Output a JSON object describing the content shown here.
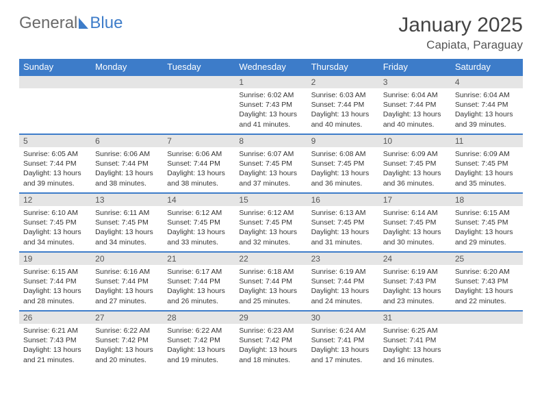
{
  "logo": {
    "general": "General",
    "blue": "Blue"
  },
  "title": "January 2025",
  "location": "Capiata, Paraguay",
  "colors": {
    "header_bg": "#3d7cc9",
    "header_text": "#ffffff",
    "daybar_bg": "#e5e5e5",
    "daybar_border": "#3d7cc9",
    "text": "#333333",
    "background": "#ffffff"
  },
  "weekdays": [
    "Sunday",
    "Monday",
    "Tuesday",
    "Wednesday",
    "Thursday",
    "Friday",
    "Saturday"
  ],
  "weeks": [
    [
      {
        "day": "",
        "sunrise": "",
        "sunset": "",
        "daylight1": "",
        "daylight2": ""
      },
      {
        "day": "",
        "sunrise": "",
        "sunset": "",
        "daylight1": "",
        "daylight2": ""
      },
      {
        "day": "",
        "sunrise": "",
        "sunset": "",
        "daylight1": "",
        "daylight2": ""
      },
      {
        "day": "1",
        "sunrise": "Sunrise: 6:02 AM",
        "sunset": "Sunset: 7:43 PM",
        "daylight1": "Daylight: 13 hours",
        "daylight2": "and 41 minutes."
      },
      {
        "day": "2",
        "sunrise": "Sunrise: 6:03 AM",
        "sunset": "Sunset: 7:44 PM",
        "daylight1": "Daylight: 13 hours",
        "daylight2": "and 40 minutes."
      },
      {
        "day": "3",
        "sunrise": "Sunrise: 6:04 AM",
        "sunset": "Sunset: 7:44 PM",
        "daylight1": "Daylight: 13 hours",
        "daylight2": "and 40 minutes."
      },
      {
        "day": "4",
        "sunrise": "Sunrise: 6:04 AM",
        "sunset": "Sunset: 7:44 PM",
        "daylight1": "Daylight: 13 hours",
        "daylight2": "and 39 minutes."
      }
    ],
    [
      {
        "day": "5",
        "sunrise": "Sunrise: 6:05 AM",
        "sunset": "Sunset: 7:44 PM",
        "daylight1": "Daylight: 13 hours",
        "daylight2": "and 39 minutes."
      },
      {
        "day": "6",
        "sunrise": "Sunrise: 6:06 AM",
        "sunset": "Sunset: 7:44 PM",
        "daylight1": "Daylight: 13 hours",
        "daylight2": "and 38 minutes."
      },
      {
        "day": "7",
        "sunrise": "Sunrise: 6:06 AM",
        "sunset": "Sunset: 7:44 PM",
        "daylight1": "Daylight: 13 hours",
        "daylight2": "and 38 minutes."
      },
      {
        "day": "8",
        "sunrise": "Sunrise: 6:07 AM",
        "sunset": "Sunset: 7:45 PM",
        "daylight1": "Daylight: 13 hours",
        "daylight2": "and 37 minutes."
      },
      {
        "day": "9",
        "sunrise": "Sunrise: 6:08 AM",
        "sunset": "Sunset: 7:45 PM",
        "daylight1": "Daylight: 13 hours",
        "daylight2": "and 36 minutes."
      },
      {
        "day": "10",
        "sunrise": "Sunrise: 6:09 AM",
        "sunset": "Sunset: 7:45 PM",
        "daylight1": "Daylight: 13 hours",
        "daylight2": "and 36 minutes."
      },
      {
        "day": "11",
        "sunrise": "Sunrise: 6:09 AM",
        "sunset": "Sunset: 7:45 PM",
        "daylight1": "Daylight: 13 hours",
        "daylight2": "and 35 minutes."
      }
    ],
    [
      {
        "day": "12",
        "sunrise": "Sunrise: 6:10 AM",
        "sunset": "Sunset: 7:45 PM",
        "daylight1": "Daylight: 13 hours",
        "daylight2": "and 34 minutes."
      },
      {
        "day": "13",
        "sunrise": "Sunrise: 6:11 AM",
        "sunset": "Sunset: 7:45 PM",
        "daylight1": "Daylight: 13 hours",
        "daylight2": "and 34 minutes."
      },
      {
        "day": "14",
        "sunrise": "Sunrise: 6:12 AM",
        "sunset": "Sunset: 7:45 PM",
        "daylight1": "Daylight: 13 hours",
        "daylight2": "and 33 minutes."
      },
      {
        "day": "15",
        "sunrise": "Sunrise: 6:12 AM",
        "sunset": "Sunset: 7:45 PM",
        "daylight1": "Daylight: 13 hours",
        "daylight2": "and 32 minutes."
      },
      {
        "day": "16",
        "sunrise": "Sunrise: 6:13 AM",
        "sunset": "Sunset: 7:45 PM",
        "daylight1": "Daylight: 13 hours",
        "daylight2": "and 31 minutes."
      },
      {
        "day": "17",
        "sunrise": "Sunrise: 6:14 AM",
        "sunset": "Sunset: 7:45 PM",
        "daylight1": "Daylight: 13 hours",
        "daylight2": "and 30 minutes."
      },
      {
        "day": "18",
        "sunrise": "Sunrise: 6:15 AM",
        "sunset": "Sunset: 7:45 PM",
        "daylight1": "Daylight: 13 hours",
        "daylight2": "and 29 minutes."
      }
    ],
    [
      {
        "day": "19",
        "sunrise": "Sunrise: 6:15 AM",
        "sunset": "Sunset: 7:44 PM",
        "daylight1": "Daylight: 13 hours",
        "daylight2": "and 28 minutes."
      },
      {
        "day": "20",
        "sunrise": "Sunrise: 6:16 AM",
        "sunset": "Sunset: 7:44 PM",
        "daylight1": "Daylight: 13 hours",
        "daylight2": "and 27 minutes."
      },
      {
        "day": "21",
        "sunrise": "Sunrise: 6:17 AM",
        "sunset": "Sunset: 7:44 PM",
        "daylight1": "Daylight: 13 hours",
        "daylight2": "and 26 minutes."
      },
      {
        "day": "22",
        "sunrise": "Sunrise: 6:18 AM",
        "sunset": "Sunset: 7:44 PM",
        "daylight1": "Daylight: 13 hours",
        "daylight2": "and 25 minutes."
      },
      {
        "day": "23",
        "sunrise": "Sunrise: 6:19 AM",
        "sunset": "Sunset: 7:44 PM",
        "daylight1": "Daylight: 13 hours",
        "daylight2": "and 24 minutes."
      },
      {
        "day": "24",
        "sunrise": "Sunrise: 6:19 AM",
        "sunset": "Sunset: 7:43 PM",
        "daylight1": "Daylight: 13 hours",
        "daylight2": "and 23 minutes."
      },
      {
        "day": "25",
        "sunrise": "Sunrise: 6:20 AM",
        "sunset": "Sunset: 7:43 PM",
        "daylight1": "Daylight: 13 hours",
        "daylight2": "and 22 minutes."
      }
    ],
    [
      {
        "day": "26",
        "sunrise": "Sunrise: 6:21 AM",
        "sunset": "Sunset: 7:43 PM",
        "daylight1": "Daylight: 13 hours",
        "daylight2": "and 21 minutes."
      },
      {
        "day": "27",
        "sunrise": "Sunrise: 6:22 AM",
        "sunset": "Sunset: 7:42 PM",
        "daylight1": "Daylight: 13 hours",
        "daylight2": "and 20 minutes."
      },
      {
        "day": "28",
        "sunrise": "Sunrise: 6:22 AM",
        "sunset": "Sunset: 7:42 PM",
        "daylight1": "Daylight: 13 hours",
        "daylight2": "and 19 minutes."
      },
      {
        "day": "29",
        "sunrise": "Sunrise: 6:23 AM",
        "sunset": "Sunset: 7:42 PM",
        "daylight1": "Daylight: 13 hours",
        "daylight2": "and 18 minutes."
      },
      {
        "day": "30",
        "sunrise": "Sunrise: 6:24 AM",
        "sunset": "Sunset: 7:41 PM",
        "daylight1": "Daylight: 13 hours",
        "daylight2": "and 17 minutes."
      },
      {
        "day": "31",
        "sunrise": "Sunrise: 6:25 AM",
        "sunset": "Sunset: 7:41 PM",
        "daylight1": "Daylight: 13 hours",
        "daylight2": "and 16 minutes."
      },
      {
        "day": "",
        "sunrise": "",
        "sunset": "",
        "daylight1": "",
        "daylight2": ""
      }
    ]
  ]
}
